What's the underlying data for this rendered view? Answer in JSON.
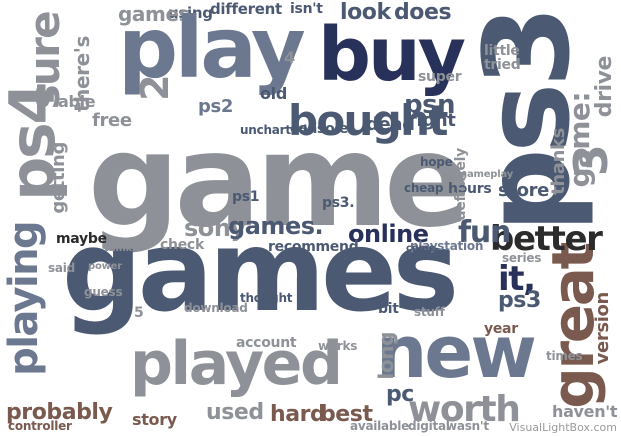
{
  "colors": {
    "slate": "#4b5a72",
    "navy": "#27315a",
    "grey": "#8e9298",
    "steel": "#6b7890",
    "brown": "#7a5a4e",
    "tan": "#b09a7a",
    "dark": "#2b2b2b"
  },
  "watermark": "VisualLightBox.com",
  "words": [
    {
      "text": "game",
      "color": "grey"
    },
    {
      "text": "games",
      "color": "slate"
    },
    {
      "text": "ps3",
      "color": "slate"
    },
    {
      "text": "play",
      "color": "steel"
    },
    {
      "text": "buy",
      "color": "navy"
    },
    {
      "text": "new",
      "color": "steel"
    },
    {
      "text": "played",
      "color": "grey"
    },
    {
      "text": "ps4",
      "color": "grey"
    },
    {
      "text": "great",
      "color": "brown"
    },
    {
      "text": "bought",
      "color": "slate"
    },
    {
      "text": "playing",
      "color": "steel"
    },
    {
      "text": "worth",
      "color": "grey"
    },
    {
      "text": "better",
      "color": "dark"
    },
    {
      "text": "sure",
      "color": "grey"
    },
    {
      "text": "look",
      "color": "slate"
    },
    {
      "text": "does",
      "color": "slate"
    },
    {
      "text": "psn",
      "color": "slate"
    },
    {
      "text": "online",
      "color": "navy"
    },
    {
      "text": "fun",
      "color": "slate"
    },
    {
      "text": "sony",
      "color": "grey"
    },
    {
      "text": "games.",
      "color": "slate"
    },
    {
      "text": "ps2",
      "color": "steel"
    },
    {
      "text": "probably",
      "color": "brown"
    },
    {
      "text": "hard",
      "color": "brown"
    },
    {
      "text": "best",
      "color": "brown"
    },
    {
      "text": "used",
      "color": "grey"
    },
    {
      "text": "pc",
      "color": "slate"
    },
    {
      "text": "it,",
      "color": "navy"
    },
    {
      "text": "ps3",
      "color": "slate"
    },
    {
      "text": "console",
      "color": "slate"
    },
    {
      "text": "dead",
      "color": "slate"
    },
    {
      "text": "free",
      "color": "grey"
    },
    {
      "text": "right",
      "color": "slate"
    },
    {
      "text": "store",
      "color": "slate"
    },
    {
      "text": "thanks",
      "color": "grey"
    },
    {
      "text": "game:",
      "color": "grey"
    },
    {
      "text": "drive",
      "color": "grey"
    },
    {
      "text": "version",
      "color": "brown"
    },
    {
      "text": "maybe",
      "color": "dark"
    },
    {
      "text": "check",
      "color": "grey"
    },
    {
      "text": "recommend",
      "color": "slate"
    },
    {
      "text": "playstation",
      "color": "steel"
    },
    {
      "text": "hours",
      "color": "slate"
    },
    {
      "text": "definitely",
      "color": "grey"
    },
    {
      "text": "getting",
      "color": "grey"
    },
    {
      "text": "there's",
      "color": "grey"
    },
    {
      "text": "able",
      "color": "grey"
    },
    {
      "text": "using",
      "color": "slate"
    },
    {
      "text": "different",
      "color": "slate"
    },
    {
      "text": "isn't",
      "color": "slate"
    },
    {
      "text": "games",
      "color": "grey"
    },
    {
      "text": "old",
      "color": "slate"
    },
    {
      "text": "uncharted",
      "color": "slate"
    },
    {
      "text": "ps1",
      "color": "slate"
    },
    {
      "text": "ps3.",
      "color": "slate"
    },
    {
      "text": "little",
      "color": "grey"
    },
    {
      "text": "tried",
      "color": "grey"
    },
    {
      "text": "super",
      "color": "grey"
    },
    {
      "text": "stuff",
      "color": "grey"
    },
    {
      "text": "long",
      "color": "grey"
    },
    {
      "text": "available",
      "color": "grey"
    },
    {
      "text": "digital",
      "color": "grey"
    },
    {
      "text": "wasn't",
      "color": "grey"
    },
    {
      "text": "haven't",
      "color": "grey"
    },
    {
      "text": "gameplay",
      "color": "grey"
    },
    {
      "text": "controller",
      "color": "brown"
    },
    {
      "text": "story",
      "color": "brown"
    },
    {
      "text": "account",
      "color": "grey"
    },
    {
      "text": "download",
      "color": "grey"
    },
    {
      "text": "works",
      "color": "grey"
    },
    {
      "text": "series",
      "color": "grey"
    },
    {
      "text": "times",
      "color": "grey"
    },
    {
      "text": "cheap",
      "color": "slate"
    },
    {
      "text": "hope",
      "color": "slate"
    },
    {
      "text": "thought",
      "color": "slate"
    },
    {
      "text": "bit",
      "color": "slate"
    },
    {
      "text": "year",
      "color": "brown"
    },
    {
      "text": "come",
      "color": "slate"
    },
    {
      "text": "think",
      "color": "grey"
    },
    {
      "text": "said",
      "color": "grey"
    },
    {
      "text": "power",
      "color": "grey"
    },
    {
      "text": "guess",
      "color": "grey"
    },
    {
      "text": "3",
      "color": "grey"
    },
    {
      "text": "2",
      "color": "grey"
    },
    {
      "text": "4",
      "color": "grey"
    },
    {
      "text": "5",
      "color": "grey"
    }
  ]
}
